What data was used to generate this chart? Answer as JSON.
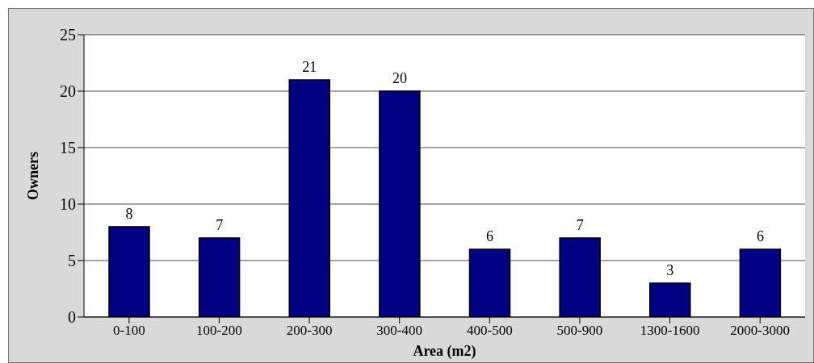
{
  "chart_data": {
    "type": "bar",
    "xlabel": "Area (m2)",
    "ylabel": "Owners",
    "categories": [
      "0-100",
      "100-200",
      "200-300",
      "300-400",
      "400-500",
      "500-900",
      "1300-1600",
      "2000-3000"
    ],
    "values": [
      8,
      7,
      21,
      20,
      6,
      7,
      3,
      6
    ],
    "color": "#000080",
    "ylim": [
      0,
      25
    ],
    "yticks": [
      0,
      5,
      10,
      15,
      20,
      25
    ],
    "grid": "y",
    "data_labels": true
  }
}
